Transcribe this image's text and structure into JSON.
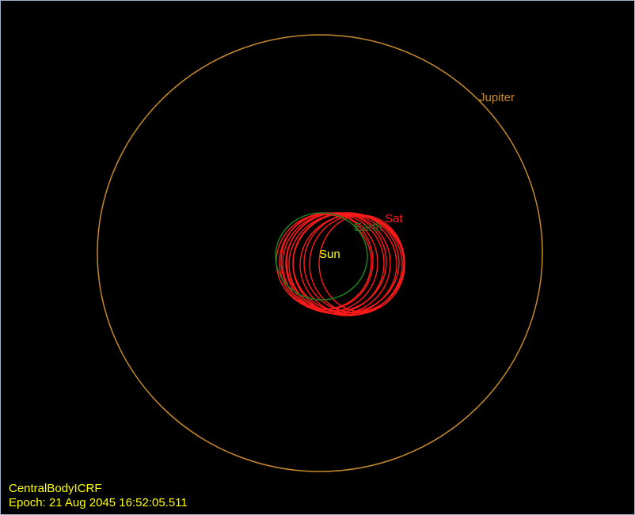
{
  "view": {
    "background": "#000000",
    "border_color": "#9fb3c8"
  },
  "bodies": {
    "jupiter": {
      "label": "Jupiter",
      "color": "#c68a2c"
    },
    "earth": {
      "label": "Earth",
      "color": "#1f7a1f"
    },
    "sat": {
      "label": "Sat",
      "color": "#ff1a1a"
    },
    "sun": {
      "label": "Sun",
      "color": "#ffff00"
    }
  },
  "hud": {
    "coordinate_system": "CentralBodyICRF",
    "epoch": "Epoch: 21 Aug 2045 16:52:05.511",
    "color": "#ffff00"
  }
}
